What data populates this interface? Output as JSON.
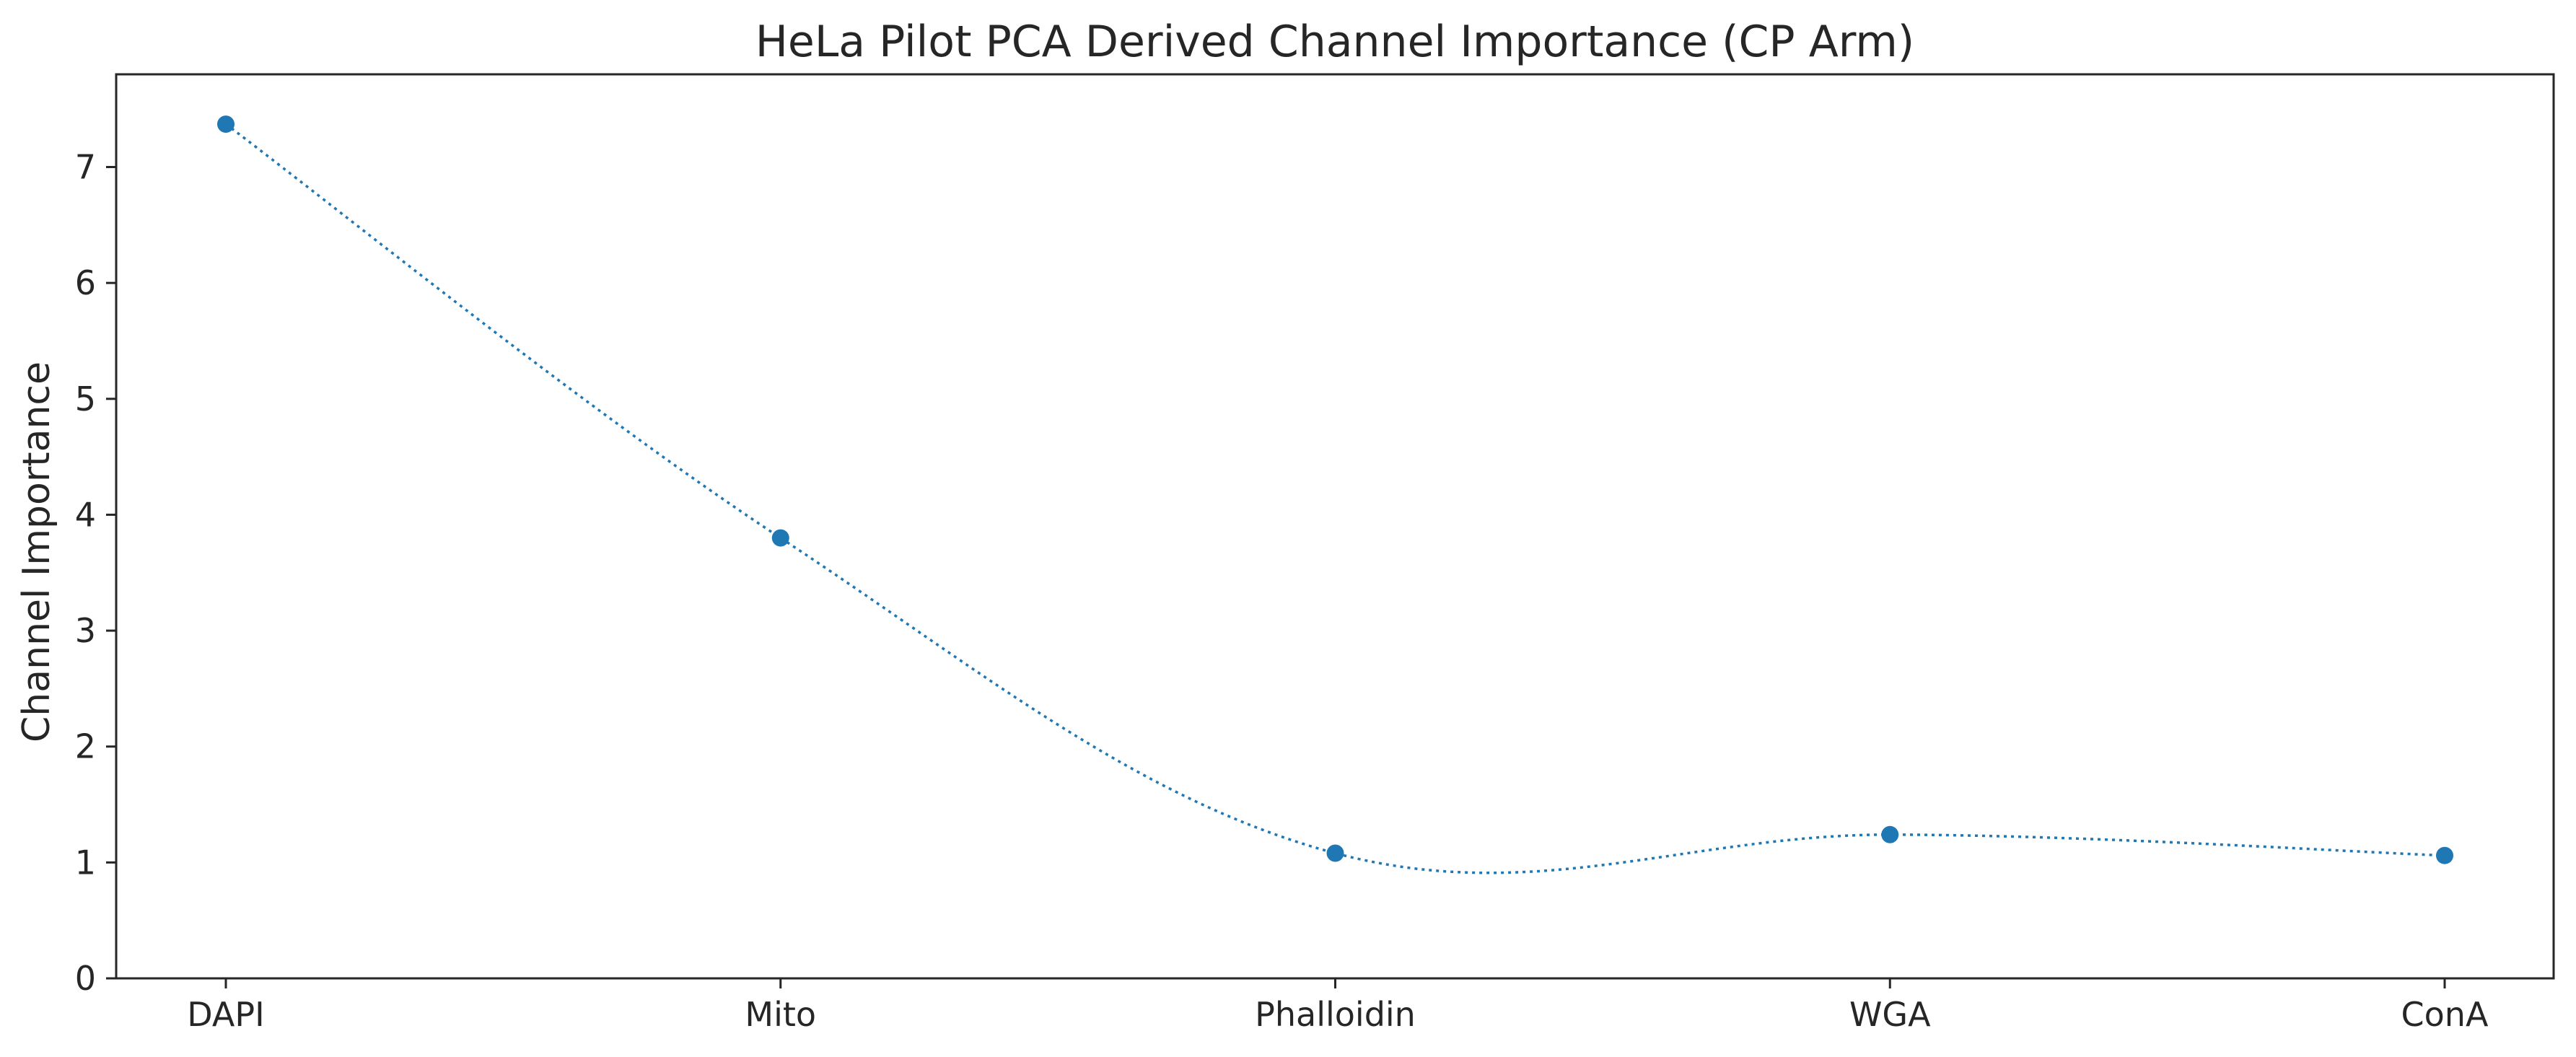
{
  "chart_data": {
    "type": "line",
    "title": "HeLa Pilot PCA Derived Channel Importance (CP Arm)",
    "xlabel": "",
    "ylabel": "Channel Importance",
    "categories": [
      "DAPI",
      "Mito",
      "Phalloidin",
      "WGA",
      "ConA"
    ],
    "series": [
      {
        "values": [
          7.37,
          3.8,
          1.08,
          1.24,
          1.06
        ],
        "color": "#1f77b4",
        "line_style": "dotted",
        "marker": "circle"
      }
    ],
    "ylim": [
      0,
      7.8
    ],
    "yticks": [
      0,
      1,
      2,
      3,
      4,
      5,
      6,
      7
    ],
    "grid": false,
    "legend": "none"
  }
}
